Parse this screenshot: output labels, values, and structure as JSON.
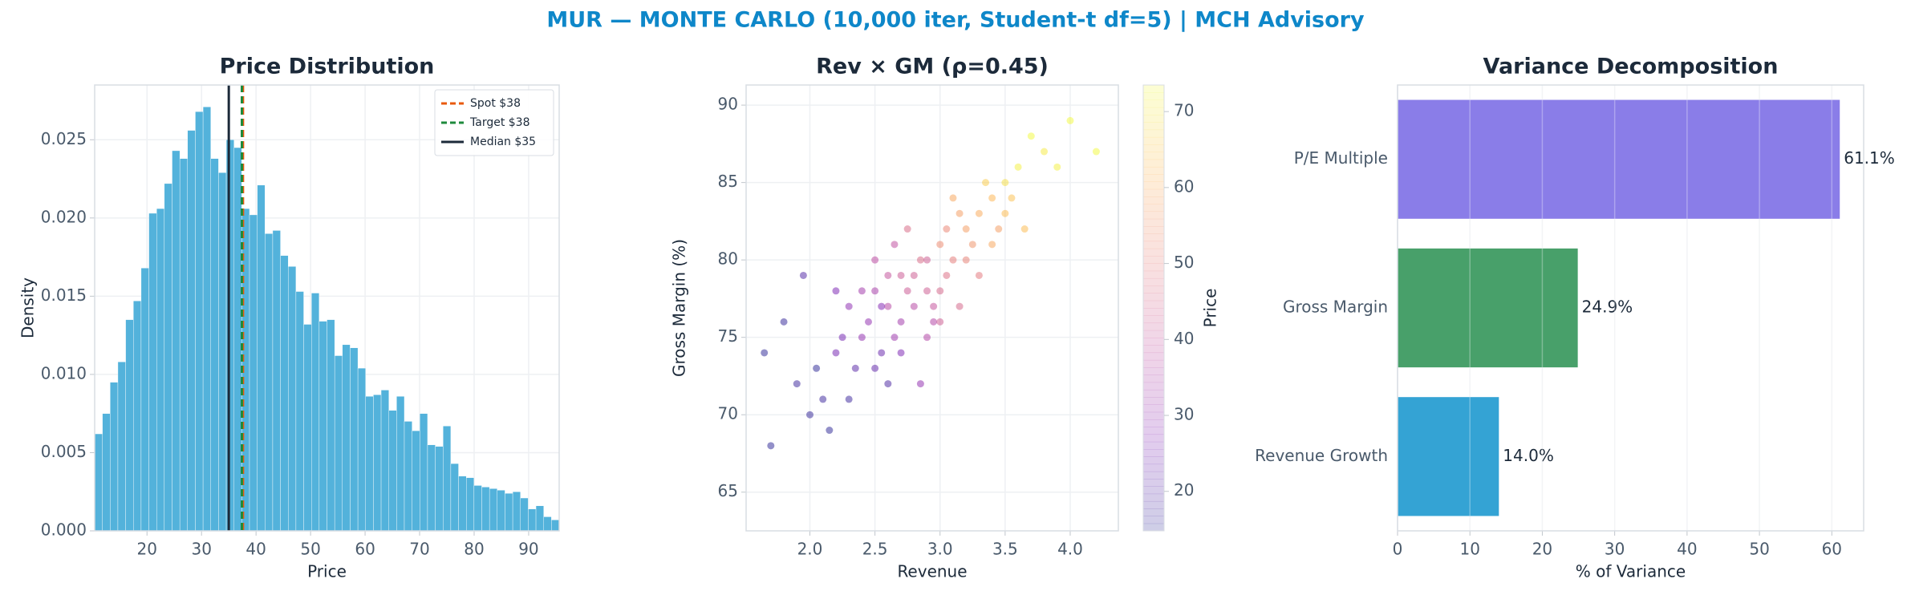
{
  "title": "MUR — MONTE CARLO (10,000 iter, Student-t df=5) | MCH Advisory",
  "chart_data": [
    {
      "type": "histogram",
      "title": "Price Distribution",
      "xlabel": "Price",
      "ylabel": "Density",
      "color": "#4aaed9",
      "grid": true,
      "bins": [
        10.4,
        11.82,
        13.24,
        14.66,
        16.08,
        17.5,
        18.92,
        20.34,
        21.76,
        23.18,
        24.6,
        26.02,
        27.44,
        28.86,
        30.28,
        31.7,
        33.12,
        34.54,
        35.96,
        37.38,
        38.8,
        40.22,
        41.64,
        43.06,
        44.48,
        45.9,
        47.32,
        48.74,
        50.16,
        51.58,
        53.0,
        54.42,
        55.84,
        57.26,
        58.68,
        60.1,
        61.52,
        62.94,
        64.36,
        65.78,
        67.2,
        68.62,
        70.04,
        71.46,
        72.88,
        74.3,
        75.72,
        77.14,
        78.56,
        79.98,
        81.4,
        82.82,
        84.24,
        85.66,
        87.08,
        88.5,
        89.92,
        91.34,
        92.76,
        94.18,
        95.6
      ],
      "values": [
        0.0062,
        0.0075,
        0.0095,
        0.0108,
        0.0135,
        0.0147,
        0.0168,
        0.0203,
        0.0206,
        0.0222,
        0.0243,
        0.0238,
        0.0256,
        0.0268,
        0.0271,
        0.0238,
        0.0229,
        0.025,
        0.0245,
        0.0206,
        0.0202,
        0.0221,
        0.019,
        0.0192,
        0.0176,
        0.0169,
        0.0153,
        0.0132,
        0.0152,
        0.0134,
        0.0135,
        0.0112,
        0.0119,
        0.0117,
        0.0104,
        0.0086,
        0.0087,
        0.009,
        0.0077,
        0.0086,
        0.007,
        0.0064,
        0.0075,
        0.0055,
        0.0054,
        0.0067,
        0.0043,
        0.0035,
        0.0034,
        0.0029,
        0.0028,
        0.0027,
        0.0026,
        0.0024,
        0.0025,
        0.0021,
        0.0014,
        0.0016,
        0.0009,
        0.0007
      ],
      "xlim": [
        10.4,
        95.6
      ],
      "xticks": [
        20,
        30,
        40,
        50,
        60,
        70,
        80,
        90
      ],
      "ylim": [
        0,
        0.0285
      ],
      "yticks": [
        {
          "value": 0,
          "label": "0.000"
        },
        {
          "value": 0.005,
          "label": "0.005"
        },
        {
          "value": 0.01,
          "label": "0.010"
        },
        {
          "value": 0.015,
          "label": "0.015"
        },
        {
          "value": 0.02,
          "label": "0.020"
        },
        {
          "value": 0.025,
          "label": "0.025"
        }
      ],
      "vlines": [
        {
          "name": "Spot $38",
          "value": 37.6,
          "color": "#e8590c",
          "dashed": true
        },
        {
          "name": "Target $38",
          "value": 37.4,
          "color": "#1e8a3c",
          "dashed": true
        },
        {
          "name": "Median $35",
          "value": 35,
          "color": "#1c2a3a",
          "dashed": false
        }
      ],
      "legend": "upper right"
    },
    {
      "type": "scatter",
      "title": "Rev × GM (ρ=0.45)",
      "xlabel": "Revenue",
      "ylabel": "Gross Margin (%)",
      "grid": true,
      "x": [
        2.6,
        2.8,
        3.1,
        2.4,
        2.9,
        3.3,
        2.2,
        2.7,
        3.0,
        3.5,
        2.5,
        2.85,
        3.2,
        1.9,
        2.3,
        3.6,
        2.75,
        3.05,
        2.65,
        3.4,
        2.1,
        2.95,
        3.15,
        2.45,
        3.8,
        2.55,
        2.0,
        3.25,
        2.7,
        3.0,
        1.7,
        2.35,
        3.45,
        2.9,
        2.6,
        3.7,
        2.25,
        3.1,
        2.8,
        4.0,
        1.8,
        2.5,
        3.3,
        2.65,
        3.55,
        2.15,
        2.95,
        3.35,
        2.4,
        3.05,
        1.65,
        2.7,
        3.9,
        2.85,
        2.2,
        3.2,
        2.6,
        3.5,
        2.3,
        3.0,
        4.2,
        2.05,
        2.75,
        3.15,
        2.5,
        3.65,
        2.9,
        1.95,
        3.4,
        2.55
      ],
      "y": [
        77,
        79,
        80,
        75,
        78,
        83,
        74,
        76,
        81,
        85,
        73,
        80,
        82,
        72,
        77,
        86,
        78,
        79,
        75,
        84,
        71,
        77,
        83,
        76,
        87,
        74,
        70,
        81,
        79,
        78,
        68,
        73,
        82,
        80,
        72,
        88,
        75,
        84,
        77,
        89,
        76,
        78,
        79,
        81,
        84,
        69,
        76,
        85,
        78,
        82,
        74,
        74,
        86,
        72,
        78,
        80,
        79,
        83,
        71,
        76,
        87,
        73,
        82,
        77,
        80,
        82,
        75,
        79,
        81,
        77
      ],
      "c": [
        37,
        43,
        50,
        30,
        43,
        60,
        25,
        33,
        53,
        69,
        22,
        46,
        57,
        17,
        29,
        72,
        42,
        47,
        32,
        62,
        17,
        40,
        57,
        30,
        71,
        23,
        16,
        55,
        42,
        45,
        15,
        21,
        57,
        43,
        19,
        74,
        25,
        59,
        37,
        77,
        16,
        34,
        49,
        39,
        64,
        15,
        36,
        66,
        33,
        52,
        15,
        26,
        72,
        30,
        26,
        51,
        40,
        63,
        17,
        43,
        74,
        15,
        46,
        45,
        38,
        63,
        36,
        20,
        59,
        27
      ],
      "xlim": [
        1.51,
        4.37
      ],
      "xticks": [
        {
          "value": 2,
          "label": "2.0"
        },
        {
          "value": 2.5,
          "label": "2.5"
        },
        {
          "value": 3,
          "label": "3.0"
        },
        {
          "value": 3.5,
          "label": "3.5"
        },
        {
          "value": 4,
          "label": "4.0"
        }
      ],
      "ylim": [
        62.5,
        91.3
      ],
      "yticks": [
        65,
        70,
        75,
        80,
        85,
        90
      ],
      "colorbar": {
        "label": "Price",
        "lim": [
          14.8,
          73.5
        ],
        "ticks": [
          20,
          30,
          40,
          50,
          60,
          70
        ],
        "colors": [
          "#0d0887",
          "#6a00a8",
          "#b12a90",
          "#e16462",
          "#fca636",
          "#f0f921"
        ],
        "alpha": 0.2
      }
    },
    {
      "type": "bar",
      "orientation": "horizontal",
      "title": "Variance Decomposition",
      "xlabel": "% of Variance",
      "grid": true,
      "categories": [
        "P/E Multiple",
        "Gross Margin",
        "Revenue Growth"
      ],
      "values": [
        61.1,
        24.9,
        14.0
      ],
      "value_labels": [
        "61.1%",
        "24.9%",
        "14.0%"
      ],
      "colors": [
        "#8a7de8",
        "#48a06a",
        "#34a3d4"
      ],
      "xlim": [
        0,
        64.4
      ],
      "xticks": [
        0,
        10,
        20,
        30,
        40,
        50,
        60
      ]
    }
  ]
}
